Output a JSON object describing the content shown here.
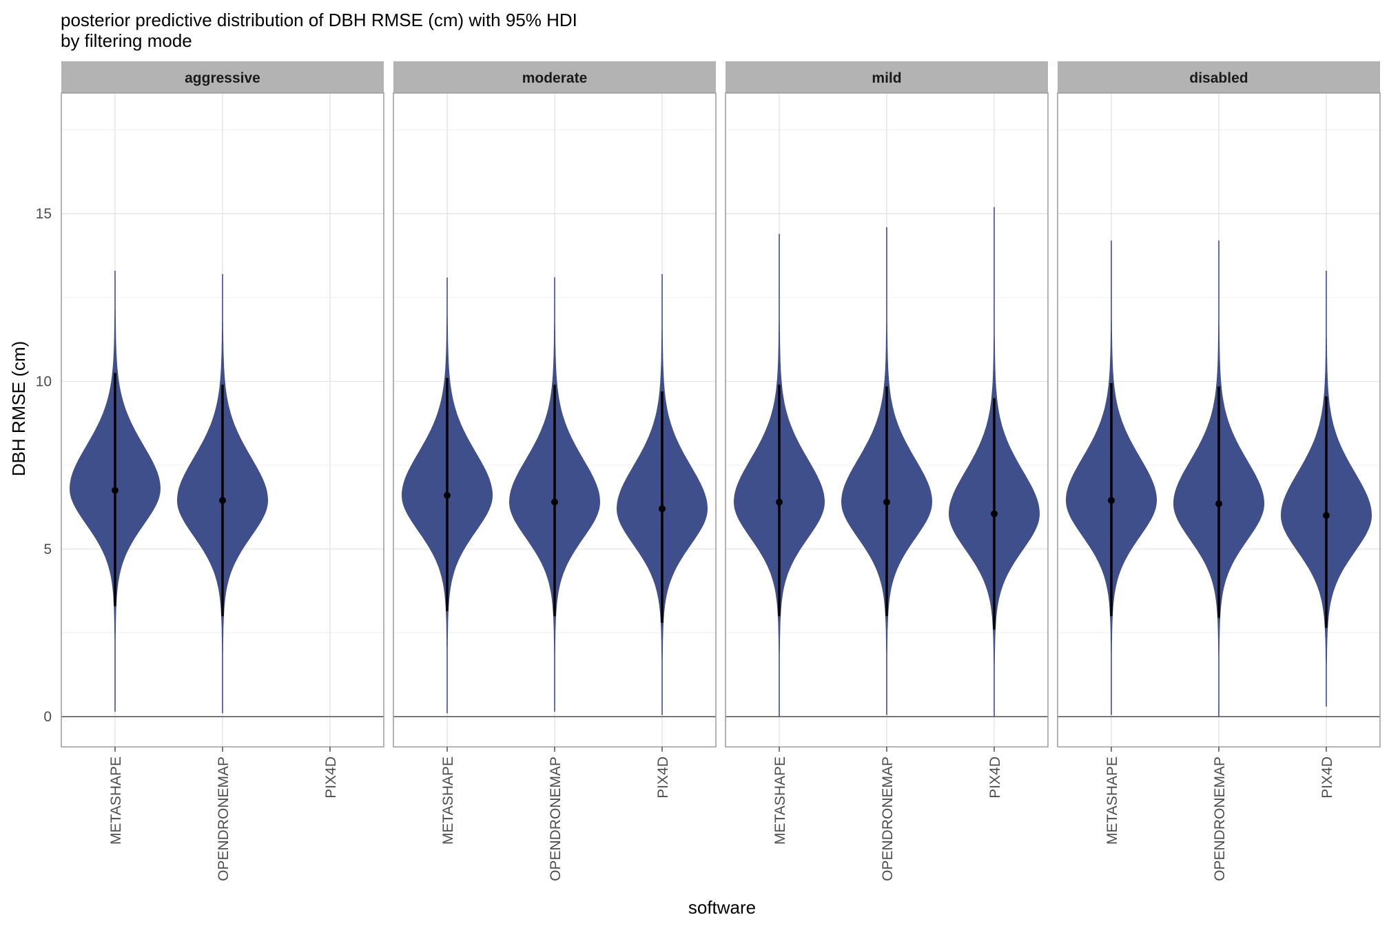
{
  "chart_data": {
    "type": "violin",
    "title": "posterior predictive distribution of DBH RMSE (cm) with 95% HDI",
    "subtitle": "by filtering mode",
    "xlabel": "software",
    "ylabel": "DBH RMSE (cm)",
    "ylim": [
      -0.9,
      18.6
    ],
    "yticks": [
      0,
      5,
      10,
      15
    ],
    "grid": true,
    "reference_line_y": 0,
    "categories": [
      "METASHAPE",
      "OPENDRONEMAP",
      "PIX4D"
    ],
    "fill_color": "#3F4F8C",
    "interval_color": "#000000",
    "facets": [
      {
        "label": "aggressive",
        "groups": [
          {
            "software": "METASHAPE",
            "median": 6.75,
            "hdi_low": 3.3,
            "hdi_high": 10.25,
            "min": 0.15,
            "max": 13.3,
            "mode": 6.8,
            "spread": 1.1
          },
          {
            "software": "OPENDRONEMAP",
            "median": 6.45,
            "hdi_low": 3.0,
            "hdi_high": 9.9,
            "min": 0.1,
            "max": 13.2,
            "mode": 6.45,
            "spread": 1.1
          },
          {
            "software": "PIX4D",
            "median": null,
            "hdi_low": null,
            "hdi_high": null,
            "min": null,
            "max": null,
            "mode": null,
            "spread": null
          }
        ]
      },
      {
        "label": "moderate",
        "groups": [
          {
            "software": "METASHAPE",
            "median": 6.6,
            "hdi_low": 3.15,
            "hdi_high": 10.1,
            "min": 0.1,
            "max": 13.1,
            "mode": 6.6,
            "spread": 1.1
          },
          {
            "software": "OPENDRONEMAP",
            "median": 6.4,
            "hdi_low": 3.0,
            "hdi_high": 9.9,
            "min": 0.15,
            "max": 13.1,
            "mode": 6.4,
            "spread": 1.1
          },
          {
            "software": "PIX4D",
            "median": 6.2,
            "hdi_low": 2.8,
            "hdi_high": 9.7,
            "min": 0.05,
            "max": 13.2,
            "mode": 6.2,
            "spread": 1.1
          }
        ]
      },
      {
        "label": "mild",
        "groups": [
          {
            "software": "METASHAPE",
            "median": 6.4,
            "hdi_low": 3.0,
            "hdi_high": 9.9,
            "min": 0.0,
            "max": 14.4,
            "mode": 6.4,
            "spread": 1.1
          },
          {
            "software": "OPENDRONEMAP",
            "median": 6.4,
            "hdi_low": 3.0,
            "hdi_high": 9.85,
            "min": 0.05,
            "max": 14.6,
            "mode": 6.4,
            "spread": 1.1
          },
          {
            "software": "PIX4D",
            "median": 6.05,
            "hdi_low": 2.6,
            "hdi_high": 9.5,
            "min": 0.0,
            "max": 15.2,
            "mode": 6.05,
            "spread": 1.1
          }
        ]
      },
      {
        "label": "disabled",
        "groups": [
          {
            "software": "METASHAPE",
            "median": 6.45,
            "hdi_low": 3.0,
            "hdi_high": 9.95,
            "min": 0.05,
            "max": 14.2,
            "mode": 6.45,
            "spread": 1.1
          },
          {
            "software": "OPENDRONEMAP",
            "median": 6.35,
            "hdi_low": 2.95,
            "hdi_high": 9.85,
            "min": 0.0,
            "max": 14.2,
            "mode": 6.35,
            "spread": 1.1
          },
          {
            "software": "PIX4D",
            "median": 6.0,
            "hdi_low": 2.65,
            "hdi_high": 9.55,
            "min": 0.3,
            "max": 13.3,
            "mode": 6.0,
            "spread": 1.1
          }
        ]
      }
    ]
  }
}
